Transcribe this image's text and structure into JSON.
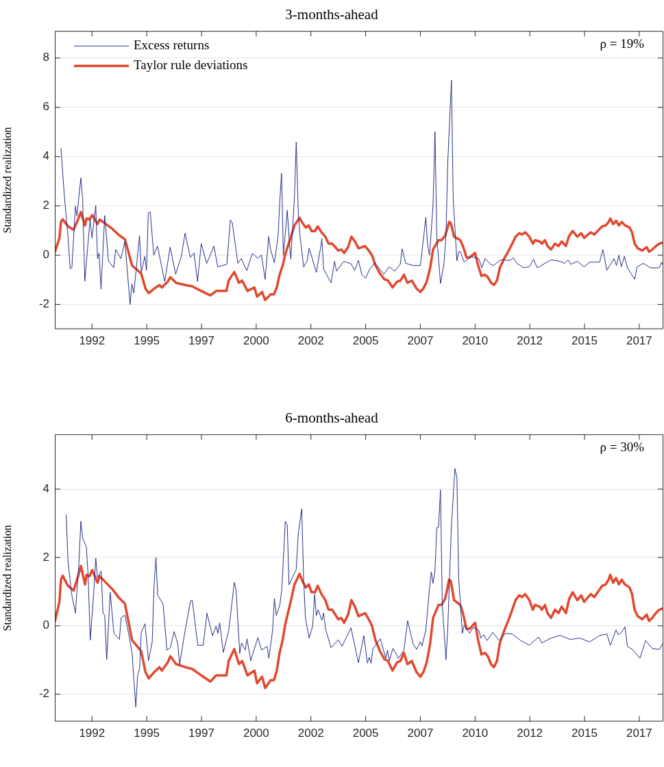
{
  "chart_data": [
    {
      "type": "line",
      "title": "3-months-ahead",
      "ylabel": "Standardized realization",
      "xlim": [
        1990.8,
        2018.6
      ],
      "ylim": [
        -3,
        9.1
      ],
      "xticks": [
        {
          "value": 1992.5,
          "label": "1992"
        },
        {
          "value": 1995,
          "label": "1995"
        },
        {
          "value": 1997.5,
          "label": "1997"
        },
        {
          "value": 2000,
          "label": "2000"
        },
        {
          "value": 2002.5,
          "label": "2002"
        },
        {
          "value": 2005,
          "label": "2005"
        },
        {
          "value": 2007.5,
          "label": "2007"
        },
        {
          "value": 2010,
          "label": "2010"
        },
        {
          "value": 2012.5,
          "label": "2012"
        },
        {
          "value": 2015,
          "label": "2015"
        },
        {
          "value": 2017.5,
          "label": "2017"
        }
      ],
      "yticks": [
        -2,
        0,
        2,
        4,
        6,
        8
      ],
      "grid": "y",
      "legend": "top left",
      "annotations": [
        "ρ = 19%"
      ],
      "series": [
        {
          "name": "Excess returns",
          "color": "#26308a",
          "x": [
            1991.08,
            1991.23,
            1991.4,
            1991.5,
            1991.58,
            1991.74,
            1991.81,
            1991.99,
            1992.07,
            1992.17,
            1992.41,
            1992.5,
            1992.67,
            1992.75,
            1992.82,
            1992.91,
            1993.08,
            1993.25,
            1993.49,
            1993.58,
            1993.82,
            1994.0,
            1994.24,
            1994.32,
            1994.41,
            1994.67,
            1994.75,
            1994.91,
            1994.99,
            1995.07,
            1995.16,
            1995.32,
            1995.49,
            1995.82,
            1996.07,
            1996.32,
            1996.58,
            1996.75,
            1996.99,
            1997.16,
            1997.32,
            1997.49,
            1997.74,
            1998.07,
            1998.24,
            1998.66,
            1998.82,
            1998.91,
            1999.16,
            1999.32,
            1999.57,
            1999.82,
            2000.07,
            2000.24,
            2000.41,
            2000.57,
            2000.66,
            2000.83,
            2001.0,
            2001.08,
            2001.16,
            2001.24,
            2001.33,
            2001.42,
            2001.5,
            2001.58,
            2001.75,
            2001.83,
            2001.92,
            2002.0,
            2002.17,
            2002.33,
            2002.42,
            2002.75,
            2002.92,
            2003.0,
            2003.08,
            2003.42,
            2003.58,
            2003.67,
            2004.0,
            2004.33,
            2004.5,
            2004.67,
            2004.83,
            2005.0,
            2005.17,
            2005.42,
            2005.83,
            2006.08,
            2006.33,
            2006.58,
            2006.67,
            2006.83,
            2007.17,
            2007.5,
            2007.67,
            2007.75,
            2007.83,
            2007.92,
            2008.08,
            2008.17,
            2008.25,
            2008.42,
            2008.58,
            2008.67,
            2008.75,
            2008.92,
            2009.0,
            2009.17,
            2009.25,
            2009.33,
            2009.5,
            2009.83,
            2010.17,
            2010.31,
            2010.45,
            2010.71,
            2010.83,
            2011.18,
            2011.59,
            2011.75,
            2011.91,
            2012.22,
            2012.48,
            2012.67,
            2012.84,
            2013.16,
            2013.47,
            2013.89,
            2014.09,
            2014.25,
            2014.38,
            2014.67,
            2014.98,
            2015.24,
            2015.69,
            2015.84,
            2016.02,
            2016.35,
            2016.46,
            2016.57,
            2016.68,
            2016.82,
            2016.96,
            2017.29,
            2017.4,
            2017.69,
            2018.0,
            2018.42,
            2018.52,
            2018.59
          ],
          "values": [
            4.34,
            2.47,
            0.79,
            -0.54,
            -0.51,
            1.99,
            1.59,
            3.14,
            2.28,
            -1.05,
            1.45,
            0.7,
            2.02,
            -0.14,
            0.09,
            -1.38,
            1.61,
            -0.23,
            -0.51,
            0.23,
            -0.14,
            0.56,
            -2.0,
            -1.15,
            -1.54,
            0.79,
            -0.7,
            -0.05,
            -0.61,
            1.72,
            1.75,
            0.0,
            0.37,
            -1.07,
            0.33,
            -0.77,
            -0.05,
            0.89,
            -0.09,
            0.09,
            -1.07,
            0.47,
            -0.33,
            0.37,
            -0.47,
            -0.37,
            1.43,
            1.31,
            -0.33,
            -0.14,
            -0.63,
            0.07,
            -0.12,
            0,
            -0.98,
            0.76,
            0.23,
            -0.31,
            0.79,
            2.24,
            3.33,
            0,
            0.89,
            1.82,
            0.75,
            -0.16,
            2.38,
            4.59,
            1.82,
            0.79,
            -0.48,
            -0.23,
            0.28,
            -0.7,
            0.19,
            0.68,
            -0.56,
            -1.12,
            -0.25,
            -0.65,
            -0.25,
            -0.35,
            -0.62,
            -0.21,
            -0.79,
            -0.93,
            -0.59,
            -0.31,
            -0.77,
            -0.47,
            -0.65,
            -0.37,
            0.26,
            -0.33,
            -0.42,
            -0.42,
            0.89,
            1.54,
            0.42,
            0,
            2.05,
            5.01,
            0.79,
            -1.15,
            -0.33,
            0.79,
            3.73,
            7.1,
            2.28,
            -0.23,
            0.14,
            0.14,
            -0.28,
            -0.05,
            -0.14,
            -0.51,
            -0.14,
            -0.37,
            -0.42,
            -0.19,
            -0.21,
            -0.11,
            -0.33,
            -0.51,
            -0.47,
            -0.17,
            -0.51,
            -0.35,
            -0.19,
            -0.25,
            -0.33,
            -0.19,
            -0.37,
            -0.25,
            -0.47,
            -0.28,
            -0.28,
            0.23,
            -0.61,
            -0.14,
            -0.42,
            0,
            -0.47,
            -0.05,
            -0.51,
            -0.98,
            -0.47,
            -0.33,
            -0.51,
            -0.51,
            -0.28,
            -0.42
          ]
        },
        {
          "name": "Taylor rule deviations",
          "color": "#e0482f",
          "x": [
            1990.81,
            1991.01,
            1991.08,
            1991.16,
            1991.4,
            1991.66,
            1991.86,
            1991.99,
            1992.18,
            1992.25,
            1992.39,
            1992.51,
            1992.75,
            1992.85,
            1993.11,
            1993.43,
            1993.74,
            1994.0,
            1994.16,
            1994.33,
            1994.63,
            1994.75,
            1994.94,
            1995.09,
            1995.35,
            1995.58,
            1995.69,
            1995.96,
            1996.08,
            1996.34,
            1996.76,
            1997.07,
            1997.49,
            1997.91,
            1998.17,
            1998.64,
            1998.74,
            1999.0,
            1999.21,
            1999.36,
            1999.6,
            1999.92,
            2000.04,
            2000.27,
            2000.41,
            2000.66,
            2000.81,
            2000.94,
            2001.07,
            2001.21,
            2001.33,
            2001.59,
            2001.75,
            2001.98,
            2002.11,
            2002.27,
            2002.4,
            2002.53,
            2002.69,
            2002.81,
            2002.98,
            2003.16,
            2003.31,
            2003.47,
            2003.75,
            2003.89,
            2004.02,
            2004.2,
            2004.35,
            2004.51,
            2004.67,
            2004.98,
            2005.14,
            2005.29,
            2005.45,
            2005.66,
            2005.86,
            2006.02,
            2006.23,
            2006.44,
            2006.59,
            2006.75,
            2006.91,
            2007.11,
            2007.32,
            2007.5,
            2007.64,
            2007.79,
            2007.95,
            2008.08,
            2008.33,
            2008.47,
            2008.63,
            2008.73,
            2008.81,
            2008.89,
            2009.04,
            2009.33,
            2009.46,
            2009.61,
            2009.75,
            2010.0,
            2010.14,
            2010.29,
            2010.45,
            2010.58,
            2010.73,
            2010.86,
            2011.0,
            2011.13,
            2011.33,
            2011.54,
            2011.67,
            2011.85,
            2012.01,
            2012.15,
            2012.29,
            2012.48,
            2012.64,
            2012.74,
            2012.95,
            2013.05,
            2013.19,
            2013.31,
            2013.47,
            2013.65,
            2013.81,
            2013.96,
            2014.15,
            2014.3,
            2014.46,
            2014.67,
            2014.85,
            2014.98,
            2015.29,
            2015.45,
            2015.6,
            2015.81,
            2015.97,
            2016.1,
            2016.18,
            2016.31,
            2016.44,
            2016.57,
            2016.7,
            2016.85,
            2017.06,
            2017.17,
            2017.29,
            2017.43,
            2017.64,
            2017.84,
            2017.95,
            2018.1,
            2018.26,
            2018.42,
            2018.59
          ],
          "values": [
            0.14,
            0.7,
            1.35,
            1.46,
            1.17,
            1.03,
            1.45,
            1.75,
            1.21,
            1.49,
            1.45,
            1.63,
            1.26,
            1.45,
            1.28,
            1.07,
            0.81,
            0.65,
            0.14,
            -0.42,
            -0.65,
            -0.75,
            -1.35,
            -1.54,
            -1.35,
            -1.21,
            -1.31,
            -1.07,
            -0.89,
            -1.12,
            -1.21,
            -1.26,
            -1.45,
            -1.63,
            -1.45,
            -1.45,
            -1.03,
            -0.68,
            -1.12,
            -1.03,
            -1.45,
            -1.31,
            -1.68,
            -1.49,
            -1.82,
            -1.59,
            -1.59,
            -1.31,
            -0.79,
            -0.42,
            0.05,
            0.75,
            1.21,
            1.52,
            1.31,
            1.12,
            1.21,
            0.98,
            0.98,
            1.17,
            0.93,
            0.75,
            0.47,
            0.47,
            0.19,
            0.23,
            0.09,
            0.33,
            0.75,
            0.56,
            0.28,
            0.37,
            0.19,
            0,
            -0.42,
            -0.75,
            -0.98,
            -1.03,
            -1.31,
            -1.07,
            -1.03,
            -0.79,
            -1.12,
            -1.03,
            -1.35,
            -1.49,
            -1.35,
            -1.07,
            -0.51,
            0.23,
            0.61,
            0.61,
            0.79,
            1.07,
            1.35,
            1.31,
            0.75,
            0.61,
            0.33,
            -0.09,
            -0.09,
            0.09,
            -0.42,
            -0.84,
            -0.79,
            -0.89,
            -1.12,
            -1.21,
            -1.03,
            -0.51,
            -0.14,
            0.19,
            0.42,
            0.75,
            0.89,
            0.84,
            0.93,
            0.75,
            0.47,
            0.61,
            0.56,
            0.47,
            0.61,
            0.37,
            0.23,
            0.47,
            0.37,
            0.56,
            0.37,
            0.79,
            0.98,
            0.75,
            0.89,
            0.7,
            0.93,
            0.84,
            0.98,
            1.17,
            1.21,
            1.35,
            1.49,
            1.26,
            1.4,
            1.21,
            1.35,
            1.21,
            1.12,
            0.93,
            0.47,
            0.28,
            0.19,
            0.33,
            0.14,
            0.23,
            0.37,
            0.47,
            0.51
          ]
        }
      ]
    },
    {
      "type": "line",
      "title": "6-months-ahead",
      "ylabel": "Standardized realization",
      "xlim": [
        1990.8,
        2018.6
      ],
      "ylim": [
        -2.8,
        5.6
      ],
      "xticks": [
        {
          "value": 1992.5,
          "label": "1992"
        },
        {
          "value": 1995,
          "label": "1995"
        },
        {
          "value": 1997.5,
          "label": "1997"
        },
        {
          "value": 2000,
          "label": "2000"
        },
        {
          "value": 2002.5,
          "label": "2002"
        },
        {
          "value": 2005,
          "label": "2005"
        },
        {
          "value": 2007.5,
          "label": "2007"
        },
        {
          "value": 2010,
          "label": "2010"
        },
        {
          "value": 2012.5,
          "label": "2012"
        },
        {
          "value": 2015,
          "label": "2015"
        },
        {
          "value": 2017.5,
          "label": "2017"
        }
      ],
      "yticks": [
        -2,
        0,
        2,
        4
      ],
      "grid": "y",
      "annotations": [
        "ρ = 30%"
      ],
      "series": [
        {
          "color": "#26308a",
          "x": [
            1991.32,
            1991.4,
            1991.56,
            1991.74,
            1991.9,
            1991.99,
            1992.07,
            1992.24,
            1992.32,
            1992.42,
            1992.58,
            1992.67,
            1992.75,
            1992.92,
            1993.0,
            1993.08,
            1993.17,
            1993.33,
            1993.5,
            1993.75,
            1993.83,
            1994.0,
            1994.17,
            1994.33,
            1994.5,
            1994.58,
            1994.67,
            1994.75,
            1994.92,
            1995.08,
            1995.25,
            1995.33,
            1995.42,
            1995.5,
            1995.67,
            1995.75,
            1995.92,
            1996.08,
            1996.25,
            1996.42,
            1996.5,
            1996.75,
            1997.0,
            1997.08,
            1997.33,
            1997.58,
            1997.75,
            1998.0,
            1998.17,
            1998.25,
            1998.33,
            1998.5,
            1998.75,
            1999.0,
            1999.08,
            1999.25,
            1999.33,
            1999.5,
            1999.58,
            1999.75,
            2000.08,
            2000.24,
            2000.5,
            2000.58,
            2000.67,
            2000.75,
            2000.83,
            2000.92,
            2001.08,
            2001.17,
            2001.33,
            2001.42,
            2001.5,
            2001.83,
            2001.92,
            2002.08,
            2002.17,
            2002.25,
            2002.42,
            2002.58,
            2002.67,
            2002.75,
            2002.83,
            2003.0,
            2003.08,
            2003.17,
            2003.42,
            2003.75,
            2003.92,
            2004.33,
            2004.67,
            2004.92,
            2005.08,
            2005.17,
            2005.25,
            2005.33,
            2005.67,
            2005.92,
            2006.0,
            2006.08,
            2006.25,
            2006.5,
            2006.75,
            2006.92,
            2007.17,
            2007.33,
            2007.5,
            2007.58,
            2007.75,
            2007.92,
            2008.0,
            2008.08,
            2008.17,
            2008.25,
            2008.33,
            2008.42,
            2008.5,
            2008.67,
            2008.75,
            2008.92,
            2009.08,
            2009.17,
            2009.25,
            2009.42,
            2009.5,
            2009.75,
            2009.92,
            2010.17,
            2010.27,
            2010.4,
            2010.55,
            2010.81,
            2011.1,
            2011.39,
            2011.7,
            2012.08,
            2012.48,
            2012.9,
            2013.05,
            2013.47,
            2013.89,
            2014.35,
            2014.77,
            2015.24,
            2015.71,
            2016.02,
            2016.18,
            2016.44,
            2016.54,
            2016.7,
            2016.85,
            2016.96,
            2017.22,
            2017.53,
            2017.79,
            2018.1,
            2018.42,
            2018.59
          ],
          "values": [
            3.25,
            1.9,
            0.96,
            0.37,
            1.83,
            3.06,
            2.56,
            2.31,
            1.48,
            -0.42,
            0.99,
            1.98,
            1.41,
            1.6,
            0.38,
            0.3,
            -0.99,
            0.98,
            -0.22,
            -0.4,
            0.23,
            0.31,
            -0.22,
            -0.81,
            -2.38,
            -1.47,
            -1.26,
            -0.19,
            0.06,
            -1.02,
            -0.47,
            1.13,
            2.0,
            0.89,
            0.72,
            0.61,
            -0.71,
            -0.64,
            -0.17,
            -0.53,
            -1.13,
            -0.15,
            0.73,
            0.75,
            -0.57,
            -0.57,
            0.37,
            -0.29,
            -0.01,
            -0.22,
            0.09,
            -0.78,
            -0.12,
            1.27,
            1.05,
            -0.81,
            -0.5,
            -0.71,
            -0.38,
            -1.02,
            -0.34,
            -0.71,
            -0.6,
            -0.95,
            -0.53,
            -0.12,
            0.8,
            0.3,
            0.61,
            1.06,
            3.06,
            2.95,
            1.2,
            1.65,
            2.69,
            3.42,
            1.34,
            0.23,
            -0.36,
            0,
            0.92,
            0.3,
            0.47,
            0.16,
            0.37,
            -0.1,
            -0.64,
            -0.41,
            -0.6,
            -0.06,
            -1.08,
            -0.29,
            -1.09,
            -0.92,
            -1.1,
            -0.67,
            -0.38,
            -0.95,
            -0.71,
            -1.02,
            -0.66,
            -0.95,
            -0.71,
            0.15,
            -0.53,
            -0.69,
            -0.47,
            -0.59,
            -0.12,
            1.1,
            1.58,
            1.24,
            1.62,
            2.87,
            2.88,
            3.97,
            0.65,
            -0.99,
            -0.12,
            2.94,
            4.6,
            4.33,
            1.41,
            -0.22,
            0.02,
            -0.22,
            -0.05,
            -0.13,
            -0.36,
            -0.26,
            -0.43,
            -0.19,
            -0.43,
            -0.22,
            -0.24,
            -0.43,
            -0.57,
            -0.33,
            -0.5,
            -0.36,
            -0.28,
            -0.4,
            -0.36,
            -0.47,
            -0.28,
            -0.24,
            -0.57,
            -0.12,
            -0.26,
            -0.19,
            -0.03,
            -0.6,
            -0.71,
            -0.95,
            -0.43,
            -0.67,
            -0.69,
            -0.5
          ]
        },
        {
          "color": "#e0482f",
          "x": [
            1990.81,
            1991.01,
            1991.08,
            1991.16,
            1991.4,
            1991.66,
            1991.86,
            1991.99,
            1992.18,
            1992.25,
            1992.39,
            1992.51,
            1992.75,
            1992.85,
            1993.11,
            1993.43,
            1993.74,
            1994.0,
            1994.16,
            1994.33,
            1994.63,
            1994.75,
            1994.94,
            1995.09,
            1995.35,
            1995.58,
            1995.69,
            1995.96,
            1996.08,
            1996.34,
            1996.76,
            1997.07,
            1997.49,
            1997.91,
            1998.17,
            1998.64,
            1998.74,
            1999.0,
            1999.21,
            1999.36,
            1999.6,
            1999.92,
            2000.04,
            2000.27,
            2000.41,
            2000.66,
            2000.81,
            2000.94,
            2001.07,
            2001.21,
            2001.33,
            2001.59,
            2001.75,
            2001.98,
            2002.11,
            2002.27,
            2002.4,
            2002.53,
            2002.69,
            2002.81,
            2002.98,
            2003.16,
            2003.31,
            2003.47,
            2003.75,
            2003.89,
            2004.02,
            2004.2,
            2004.35,
            2004.51,
            2004.67,
            2004.98,
            2005.14,
            2005.29,
            2005.45,
            2005.66,
            2005.86,
            2006.02,
            2006.23,
            2006.44,
            2006.59,
            2006.75,
            2006.91,
            2007.11,
            2007.32,
            2007.5,
            2007.64,
            2007.79,
            2007.95,
            2008.08,
            2008.33,
            2008.47,
            2008.63,
            2008.73,
            2008.81,
            2008.89,
            2009.04,
            2009.33,
            2009.46,
            2009.61,
            2009.75,
            2010.0,
            2010.14,
            2010.29,
            2010.45,
            2010.58,
            2010.73,
            2010.86,
            2011.0,
            2011.13,
            2011.33,
            2011.54,
            2011.67,
            2011.85,
            2012.01,
            2012.15,
            2012.29,
            2012.48,
            2012.64,
            2012.74,
            2012.95,
            2013.05,
            2013.19,
            2013.31,
            2013.47,
            2013.65,
            2013.81,
            2013.96,
            2014.15,
            2014.3,
            2014.46,
            2014.67,
            2014.85,
            2014.98,
            2015.29,
            2015.45,
            2015.6,
            2015.81,
            2015.97,
            2016.1,
            2016.18,
            2016.31,
            2016.44,
            2016.57,
            2016.7,
            2016.85,
            2017.06,
            2017.17,
            2017.29,
            2017.43,
            2017.64,
            2017.84,
            2017.95,
            2018.1,
            2018.26,
            2018.42,
            2018.59
          ],
          "values": [
            0.14,
            0.7,
            1.35,
            1.46,
            1.17,
            1.03,
            1.45,
            1.75,
            1.21,
            1.49,
            1.45,
            1.63,
            1.26,
            1.45,
            1.28,
            1.07,
            0.81,
            0.65,
            0.14,
            -0.42,
            -0.65,
            -0.75,
            -1.35,
            -1.54,
            -1.35,
            -1.21,
            -1.31,
            -1.07,
            -0.89,
            -1.12,
            -1.21,
            -1.26,
            -1.45,
            -1.63,
            -1.45,
            -1.45,
            -1.03,
            -0.68,
            -1.12,
            -1.03,
            -1.45,
            -1.31,
            -1.68,
            -1.49,
            -1.82,
            -1.59,
            -1.59,
            -1.31,
            -0.79,
            -0.42,
            0.05,
            0.75,
            1.21,
            1.52,
            1.31,
            1.12,
            1.21,
            0.98,
            0.98,
            1.17,
            0.93,
            0.75,
            0.47,
            0.47,
            0.19,
            0.23,
            0.09,
            0.33,
            0.75,
            0.56,
            0.28,
            0.37,
            0.19,
            0,
            -0.42,
            -0.75,
            -0.98,
            -1.03,
            -1.31,
            -1.07,
            -1.03,
            -0.79,
            -1.12,
            -1.03,
            -1.35,
            -1.49,
            -1.35,
            -1.07,
            -0.51,
            0.23,
            0.61,
            0.61,
            0.79,
            1.07,
            1.35,
            1.31,
            0.75,
            0.61,
            0.33,
            -0.09,
            -0.09,
            0.09,
            -0.42,
            -0.84,
            -0.79,
            -0.89,
            -1.12,
            -1.21,
            -1.03,
            -0.51,
            -0.14,
            0.19,
            0.42,
            0.75,
            0.89,
            0.84,
            0.93,
            0.75,
            0.47,
            0.61,
            0.56,
            0.47,
            0.61,
            0.37,
            0.23,
            0.47,
            0.37,
            0.56,
            0.37,
            0.79,
            0.98,
            0.75,
            0.89,
            0.7,
            0.93,
            0.84,
            0.98,
            1.17,
            1.21,
            1.35,
            1.49,
            1.26,
            1.4,
            1.21,
            1.35,
            1.21,
            1.12,
            0.93,
            0.47,
            0.28,
            0.19,
            0.33,
            0.14,
            0.23,
            0.37,
            0.47,
            0.51
          ]
        }
      ]
    }
  ]
}
